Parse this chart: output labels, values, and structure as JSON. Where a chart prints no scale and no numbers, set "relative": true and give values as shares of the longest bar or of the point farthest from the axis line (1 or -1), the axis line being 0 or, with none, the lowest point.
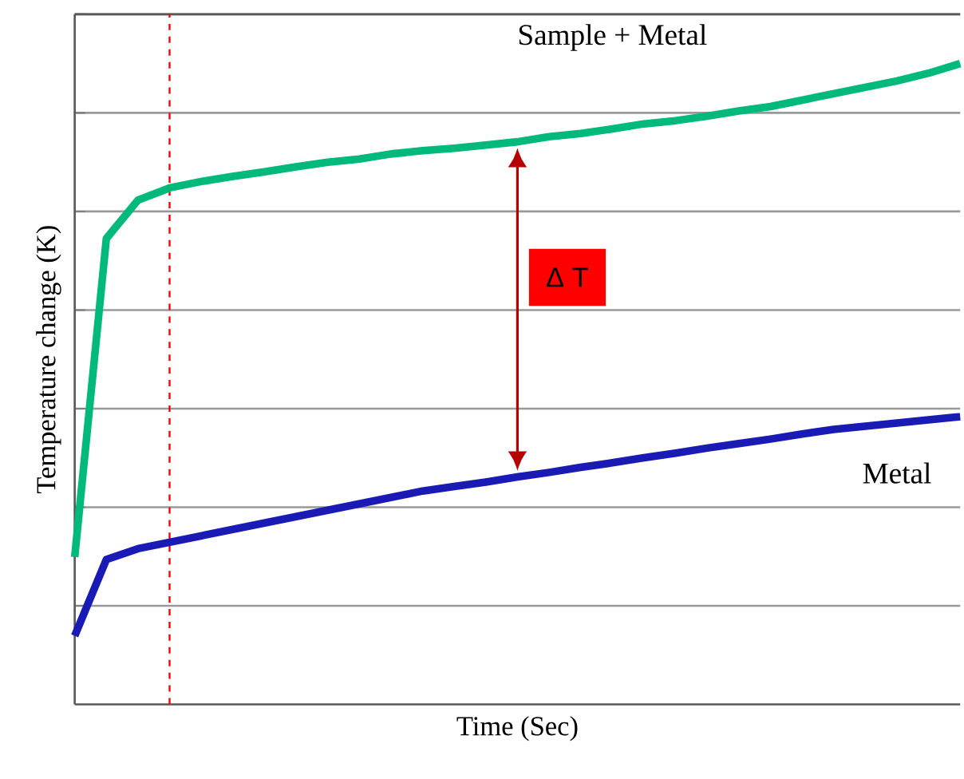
{
  "chart_data": {
    "type": "line",
    "relative": true,
    "xlabel": "Time (Sec)",
    "ylabel": "Temperature change (K)",
    "grid": "y",
    "categories": [
      null,
      null,
      null,
      null,
      null,
      null,
      null,
      null,
      null,
      null,
      null,
      null,
      null,
      null,
      null,
      null,
      null,
      null,
      null,
      null,
      null,
      null,
      null,
      null,
      null,
      null,
      null,
      null,
      null
    ],
    "series": [
      {
        "name": "Sample + Metal",
        "color": "#00b97a",
        "values": [
          0.23,
          0.727,
          0.787,
          0.806,
          0.816,
          0.824,
          0.831,
          0.839,
          0.846,
          0.851,
          0.859,
          0.864,
          0.868,
          0.873,
          0.878,
          0.886,
          0.891,
          0.898,
          0.906,
          0.911,
          0.918,
          0.926,
          0.933,
          0.943,
          0.953,
          0.963,
          0.973,
          0.985,
          1.0
        ]
      },
      {
        "name": "Metal",
        "color": "#1a1ab4",
        "values": [
          0.107,
          0.226,
          0.243,
          0.253,
          0.263,
          0.273,
          0.283,
          0.293,
          0.303,
          0.313,
          0.323,
          0.333,
          0.34,
          0.347,
          0.355,
          0.362,
          0.37,
          0.377,
          0.385,
          0.392,
          0.4,
          0.407,
          0.414,
          0.422,
          0.429,
          0.434,
          0.439,
          0.444,
          0.449
        ]
      }
    ],
    "annotations": [
      "Δ T"
    ]
  }
}
